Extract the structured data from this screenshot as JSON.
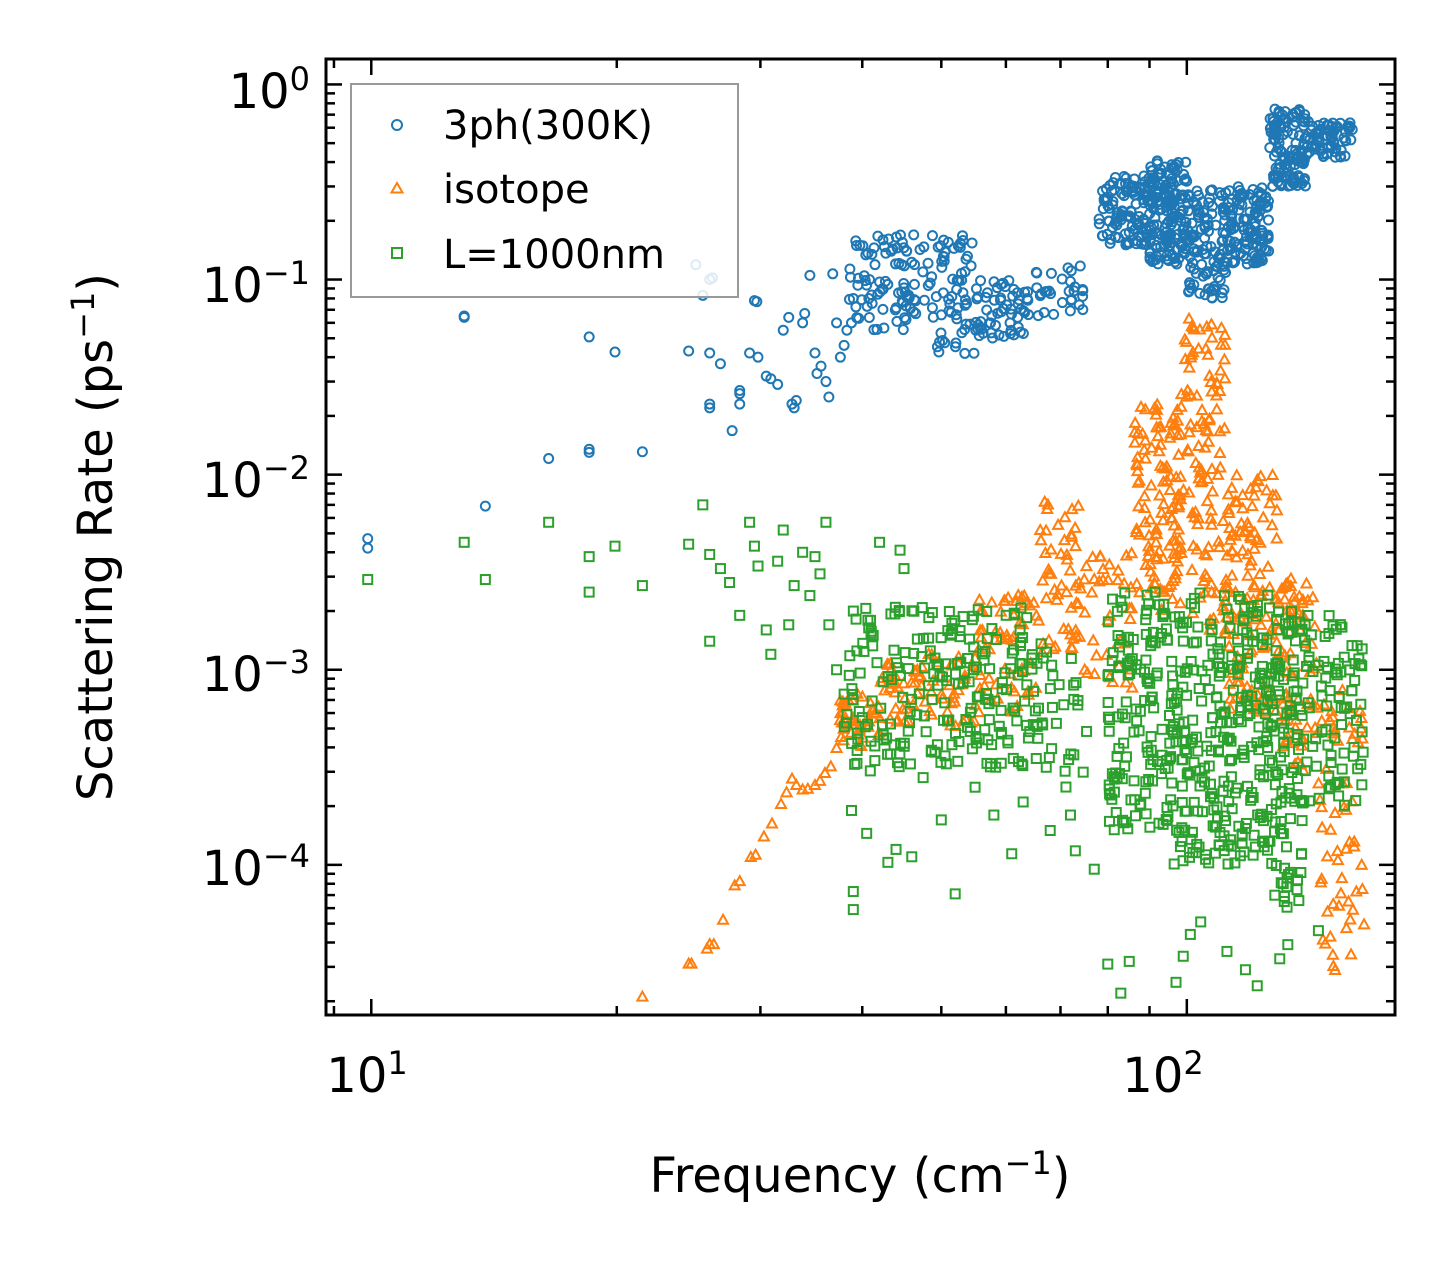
{
  "chart_data": {
    "type": "scatter",
    "xscale": "log",
    "yscale": "log",
    "xlim": [
      8.8,
      180
    ],
    "ylim": [
      1.7e-05,
      1.35
    ],
    "xlabel": "Frequency (cm",
    "xlabel_sup": "−1",
    "xlabel_end": ")",
    "ylabel": "Scattering Rate (ps",
    "ylabel_sup": "−1",
    "ylabel_end": ")",
    "x_ticks": [
      {
        "value": 10,
        "base": "10",
        "exp": "1"
      },
      {
        "value": 100,
        "base": "10",
        "exp": "2"
      }
    ],
    "y_ticks": [
      {
        "value": 1,
        "base": "10",
        "exp": "0"
      },
      {
        "value": 0.1,
        "base": "10",
        "exp": "−1"
      },
      {
        "value": 0.01,
        "base": "10",
        "exp": "−2"
      },
      {
        "value": 0.001,
        "base": "10",
        "exp": "−3"
      },
      {
        "value": 0.0001,
        "base": "10",
        "exp": "−4"
      }
    ],
    "legend_position": "top-left",
    "series": [
      {
        "name": "3ph(300K)",
        "marker": "circle",
        "color": "#1f77b4",
        "points": [
          [
            9.9,
            0.0047
          ],
          [
            9.9,
            0.0042
          ],
          [
            13.0,
            0.064
          ],
          [
            13.0,
            0.065
          ],
          [
            13.8,
            0.0069
          ],
          [
            16.5,
            0.0121
          ],
          [
            18.5,
            0.0508
          ],
          [
            18.5,
            0.0135
          ],
          [
            18.5,
            0.013
          ],
          [
            19.9,
            0.0425
          ],
          [
            21.5,
            0.0131
          ],
          [
            24.5,
            0.043
          ],
          [
            25.0,
            0.119
          ],
          [
            25.5,
            0.083
          ],
          [
            26.0,
            0.1
          ],
          [
            26.2,
            0.102
          ],
          [
            26.0,
            0.042
          ],
          [
            26.0,
            0.022
          ],
          [
            26.0,
            0.023
          ],
          [
            26.8,
            0.037
          ],
          [
            27.7,
            0.0168
          ],
          [
            28.3,
            0.026
          ],
          [
            28.3,
            0.023
          ],
          [
            28.3,
            0.027
          ],
          [
            29.1,
            0.042
          ],
          [
            29.5,
            0.078
          ],
          [
            29.7,
            0.077
          ],
          [
            29.8,
            0.04
          ],
          [
            30.5,
            0.032
          ],
          [
            30.9,
            0.031
          ],
          [
            31.5,
            0.029
          ],
          [
            32.0,
            0.055
          ],
          [
            32.5,
            0.064
          ],
          [
            32.8,
            0.023
          ],
          [
            33.0,
            0.022
          ],
          [
            33.2,
            0.024
          ],
          [
            33.8,
            0.06
          ],
          [
            34.0,
            0.067
          ],
          [
            34.5,
            0.105
          ],
          [
            35.0,
            0.042
          ],
          [
            35.2,
            0.033
          ],
          [
            35.6,
            0.036
          ],
          [
            36.1,
            0.03
          ],
          [
            36.4,
            0.025
          ],
          [
            36.8,
            0.107
          ],
          [
            37.2,
            0.06
          ],
          [
            37.6,
            0.04
          ],
          [
            38.0,
            0.046
          ],
          [
            38.3,
            0.055
          ],
          [
            38.8,
            0.06
          ],
          [
            39.0,
            0.08
          ]
        ],
        "bands": [
          {
            "x0": 38.5,
            "x1": 48.5,
            "y0": 0.055,
            "y1": 0.17,
            "n": 90
          },
          {
            "x0": 48.5,
            "x1": 55,
            "y0": 0.04,
            "y1": 0.17,
            "n": 60
          },
          {
            "x0": 55,
            "x1": 64,
            "y0": 0.05,
            "y1": 0.1,
            "n": 60
          },
          {
            "x0": 64,
            "x1": 75,
            "y0": 0.065,
            "y1": 0.12,
            "n": 30
          },
          {
            "x0": 78,
            "x1": 90,
            "y0": 0.15,
            "y1": 0.34,
            "n": 110
          },
          {
            "x0": 90,
            "x1": 100,
            "y0": 0.12,
            "y1": 0.42,
            "n": 160
          },
          {
            "x0": 100,
            "x1": 112,
            "y0": 0.08,
            "y1": 0.3,
            "n": 110
          },
          {
            "x0": 112,
            "x1": 126,
            "y0": 0.12,
            "y1": 0.3,
            "n": 120
          },
          {
            "x0": 126,
            "x1": 140,
            "y0": 0.3,
            "y1": 0.75,
            "n": 120
          },
          {
            "x0": 140,
            "x1": 160,
            "y0": 0.42,
            "y1": 0.65,
            "n": 70
          }
        ]
      },
      {
        "name": "isotope",
        "marker": "triangle",
        "color": "#ff7f0e",
        "points": [
          [
            21.5,
            2.1e-05
          ],
          [
            24.5,
            3.1e-05
          ],
          [
            24.7,
            3.1e-05
          ],
          [
            25.8,
            3.7e-05
          ],
          [
            26.0,
            3.9e-05
          ],
          [
            26.3,
            3.9e-05
          ],
          [
            27.0,
            5.2e-05
          ],
          [
            27.9,
            7.8e-05
          ],
          [
            28.3,
            8.2e-05
          ],
          [
            29.2,
            0.000109
          ],
          [
            29.6,
            0.000112
          ],
          [
            30.3,
            0.000139
          ],
          [
            31.0,
            0.000162
          ],
          [
            31.8,
            0.000204
          ],
          [
            32.3,
            0.000234
          ],
          [
            32.8,
            0.000275
          ],
          [
            33.2,
            0.000255
          ],
          [
            33.8,
            0.000242
          ],
          [
            34.3,
            0.000244
          ],
          [
            35.0,
            0.000255
          ],
          [
            35.5,
            0.000268
          ],
          [
            36.0,
            0.000294
          ],
          [
            36.6,
            0.000318
          ],
          [
            37.2,
            0.000395
          ]
        ],
        "bands": [
          {
            "x0": 37.5,
            "x1": 42,
            "y0": 0.0004,
            "y1": 0.00075,
            "n": 40
          },
          {
            "x0": 42,
            "x1": 55,
            "y0": 0.0005,
            "y1": 0.0012,
            "n": 70
          },
          {
            "x0": 55,
            "x1": 66,
            "y0": 0.0006,
            "y1": 0.0024,
            "n": 60
          },
          {
            "x0": 66,
            "x1": 74,
            "y0": 0.0012,
            "y1": 0.0075,
            "n": 50
          },
          {
            "x0": 74,
            "x1": 86,
            "y0": 0.0008,
            "y1": 0.004,
            "n": 40
          },
          {
            "x0": 86,
            "x1": 98,
            "y0": 0.002,
            "y1": 0.023,
            "n": 110
          },
          {
            "x0": 98,
            "x1": 112,
            "y0": 0.0015,
            "y1": 0.065,
            "n": 120
          },
          {
            "x0": 112,
            "x1": 130,
            "y0": 0.0006,
            "y1": 0.01,
            "n": 120
          },
          {
            "x0": 130,
            "x1": 145,
            "y0": 0.0003,
            "y1": 0.003,
            "n": 70
          },
          {
            "x0": 145,
            "x1": 165,
            "y0": 2.6e-05,
            "y1": 0.0008,
            "n": 60
          }
        ]
      },
      {
        "name": "L=1000nm",
        "marker": "square",
        "color": "#2ca02c",
        "points": [
          [
            9.9,
            0.0029
          ],
          [
            13.0,
            0.0045
          ],
          [
            13.8,
            0.0029
          ],
          [
            16.5,
            0.0057
          ],
          [
            18.5,
            0.0038
          ],
          [
            18.5,
            0.0025
          ],
          [
            19.9,
            0.0043
          ],
          [
            21.5,
            0.0027
          ],
          [
            24.5,
            0.0044
          ],
          [
            25.5,
            0.007
          ],
          [
            26.0,
            0.0039
          ],
          [
            26.0,
            0.0014
          ],
          [
            26.8,
            0.0033
          ],
          [
            27.5,
            0.0028
          ],
          [
            28.3,
            0.0019
          ],
          [
            29.1,
            0.0057
          ],
          [
            29.5,
            0.0043
          ],
          [
            29.8,
            0.0034
          ],
          [
            30.5,
            0.0016
          ],
          [
            30.9,
            0.0012
          ],
          [
            31.5,
            0.0036
          ],
          [
            32.0,
            0.0052
          ],
          [
            32.5,
            0.0017
          ],
          [
            33.0,
            0.0027
          ],
          [
            33.8,
            0.004
          ],
          [
            34.5,
            0.0024
          ],
          [
            35.0,
            0.0038
          ],
          [
            35.5,
            0.0031
          ],
          [
            36.1,
            0.0057
          ],
          [
            36.4,
            0.0017
          ],
          [
            37.2,
            0.001
          ],
          [
            38.0,
            0.00075
          ],
          [
            38.3,
            0.00059
          ],
          [
            38.8,
            0.00019
          ],
          [
            39.0,
            7.3e-05
          ],
          [
            39.0,
            5.9e-05
          ],
          [
            39.5,
            0.00044
          ],
          [
            40.5,
            0.000145
          ],
          [
            41.0,
            0.00043
          ],
          [
            42.0,
            0.0045
          ],
          [
            43.0,
            0.000103
          ],
          [
            44.0,
            0.00012
          ],
          [
            44.5,
            0.0041
          ],
          [
            45.0,
            0.0033
          ],
          [
            46.0,
            0.00011
          ],
          [
            47.5,
            0.00028
          ],
          [
            50.0,
            0.00017
          ],
          [
            52.0,
            7.1e-05
          ],
          [
            55.0,
            0.00025
          ],
          [
            58.0,
            0.00018
          ],
          [
            61.0,
            0.000114
          ],
          [
            63.0,
            0.00021
          ],
          [
            68.0,
            0.00015
          ],
          [
            72.0,
            0.00018
          ],
          [
            73.0,
            0.000118
          ],
          [
            77.0,
            9.5e-05
          ],
          [
            80.0,
            3.1e-05
          ],
          [
            83.0,
            2.2e-05
          ],
          [
            85.0,
            3.2e-05
          ],
          [
            97.0,
            2.5e-05
          ],
          [
            99.0,
            3.4e-05
          ],
          [
            101.0,
            4.4e-05
          ],
          [
            104.0,
            5.1e-05
          ],
          [
            112.0,
            3.6e-05
          ],
          [
            118.0,
            2.9e-05
          ],
          [
            122.0,
            2.4e-05
          ],
          [
            130.0,
            3.3e-05
          ],
          [
            133.0,
            3.9e-05
          ],
          [
            145.0,
            4.6e-05
          ]
        ],
        "bands": [
          {
            "x0": 38,
            "x1": 50,
            "y0": 0.0003,
            "y1": 0.0021,
            "n": 100
          },
          {
            "x0": 50,
            "x1": 64,
            "y0": 0.0003,
            "y1": 0.0021,
            "n": 110
          },
          {
            "x0": 64,
            "x1": 76,
            "y0": 0.00025,
            "y1": 0.0015,
            "n": 40
          },
          {
            "x0": 80,
            "x1": 96,
            "y0": 0.00015,
            "y1": 0.0025,
            "n": 140
          },
          {
            "x0": 96,
            "x1": 112,
            "y0": 0.0001,
            "y1": 0.0025,
            "n": 140
          },
          {
            "x0": 112,
            "x1": 128,
            "y0": 0.0001,
            "y1": 0.0025,
            "n": 130
          },
          {
            "x0": 128,
            "x1": 140,
            "y0": 6e-05,
            "y1": 0.002,
            "n": 100
          },
          {
            "x0": 140,
            "x1": 165,
            "y0": 0.0002,
            "y1": 0.0019,
            "n": 80
          }
        ]
      }
    ]
  }
}
